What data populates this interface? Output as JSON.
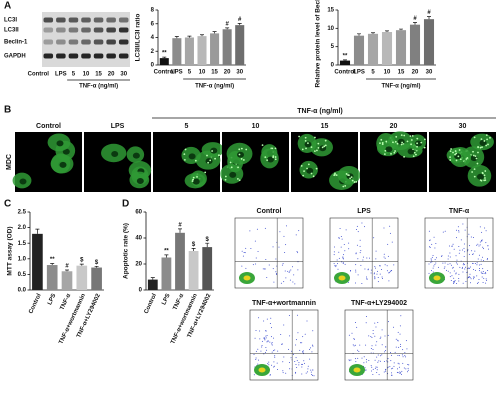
{
  "letters": [
    "A",
    "B",
    "C",
    "D"
  ],
  "blot": {
    "bands": [
      "LC3I",
      "LC3II",
      "Beclin-1",
      "GAPDH"
    ],
    "lanes": [
      "Control",
      "LPS",
      "5",
      "10",
      "15",
      "20",
      "30"
    ],
    "group_label": "TNF-α (ng/ml)"
  },
  "microscopy": {
    "row_label": "MDC",
    "group_label": "TNF-α (ng/ml)",
    "columns": [
      "Control",
      "LPS",
      "5",
      "10",
      "15",
      "20",
      "30"
    ]
  },
  "flow": {
    "titles": [
      "Control",
      "LPS",
      "TNF-α",
      "TNF-α+wortmannin",
      "TNF-α+LY294002"
    ]
  },
  "chart_data": [
    {
      "type": "bar",
      "y_label": "LC3II/LC3I ratio",
      "categories": [
        "Control",
        "LPS",
        "5",
        "10",
        "15",
        "20",
        "30"
      ],
      "group_label": "TNF-α (ng/ml)",
      "values": [
        1.0,
        3.9,
        4.0,
        4.2,
        4.6,
        5.2,
        5.8
      ],
      "errors": [
        0.15,
        0.25,
        0.2,
        0.2,
        0.25,
        0.2,
        0.25
      ],
      "annotations": [
        "**",
        null,
        null,
        null,
        null,
        "#",
        "#"
      ],
      "colors": [
        "#111111",
        "#8c8c8c",
        "#a6a6a6",
        "#b8b8b8",
        "#9a9a9a",
        "#808080",
        "#6e6e6e"
      ],
      "ylim": [
        0,
        8
      ],
      "yticks": [
        0,
        2,
        4,
        6,
        8
      ]
    },
    {
      "type": "bar",
      "y_label": "Relative protein level of Beclin-1",
      "categories": [
        "Control",
        "LPS",
        "5",
        "10",
        "15",
        "20",
        "30"
      ],
      "group_label": "TNF-α (ng/ml)",
      "values": [
        1.2,
        8.0,
        8.5,
        9.0,
        9.5,
        11.0,
        12.5
      ],
      "errors": [
        0.2,
        0.5,
        0.3,
        0.3,
        0.3,
        0.6,
        0.7
      ],
      "annotations": [
        "**",
        null,
        null,
        null,
        null,
        "#",
        "#"
      ],
      "colors": [
        "#111111",
        "#8c8c8c",
        "#a6a6a6",
        "#b8b8b8",
        "#9a9a9a",
        "#808080",
        "#6e6e6e"
      ],
      "ylim": [
        0,
        15
      ],
      "yticks": [
        0,
        5,
        10,
        15
      ]
    },
    {
      "type": "bar",
      "y_label": "MTT assay (OD)",
      "categories": [
        "Control",
        "LPS",
        "TNF-α",
        "TNF-α+wortmannin",
        "TNF-α+LY294002"
      ],
      "values": [
        1.8,
        0.8,
        0.6,
        0.78,
        0.72
      ],
      "errors": [
        0.15,
        0.05,
        0.04,
        0.05,
        0.04
      ],
      "annotations": [
        null,
        "**",
        "#",
        "$",
        "$"
      ],
      "colors": [
        "#222222",
        "#8c8c8c",
        "#a6a6a6",
        "#c8c8c8",
        "#777777"
      ],
      "ylim": [
        0,
        2.5
      ],
      "yticks": [
        {
          "value": 0,
          "label": "0.0"
        },
        0.5,
        {
          "value": 1,
          "label": "1.0"
        },
        1.5,
        {
          "value": 2,
          "label": "2.0"
        },
        2.5
      ]
    },
    {
      "type": "bar",
      "y_label": "Apoptotic rate (%)",
      "categories": [
        "Control",
        "LPS",
        "TNF-α",
        "TNF-α+wortmannin",
        "TNF-α+LY294002"
      ],
      "values": [
        8,
        25,
        44,
        30,
        33
      ],
      "errors": [
        1.5,
        2,
        3,
        2,
        3
      ],
      "annotations": [
        null,
        "**",
        "#",
        "$",
        "$"
      ],
      "colors": [
        "#222222",
        "#8c8c8c",
        "#777777",
        "#c8c8c8",
        "#555555"
      ],
      "ylim": [
        0,
        60
      ],
      "yticks": [
        0,
        20,
        40,
        60
      ]
    }
  ]
}
